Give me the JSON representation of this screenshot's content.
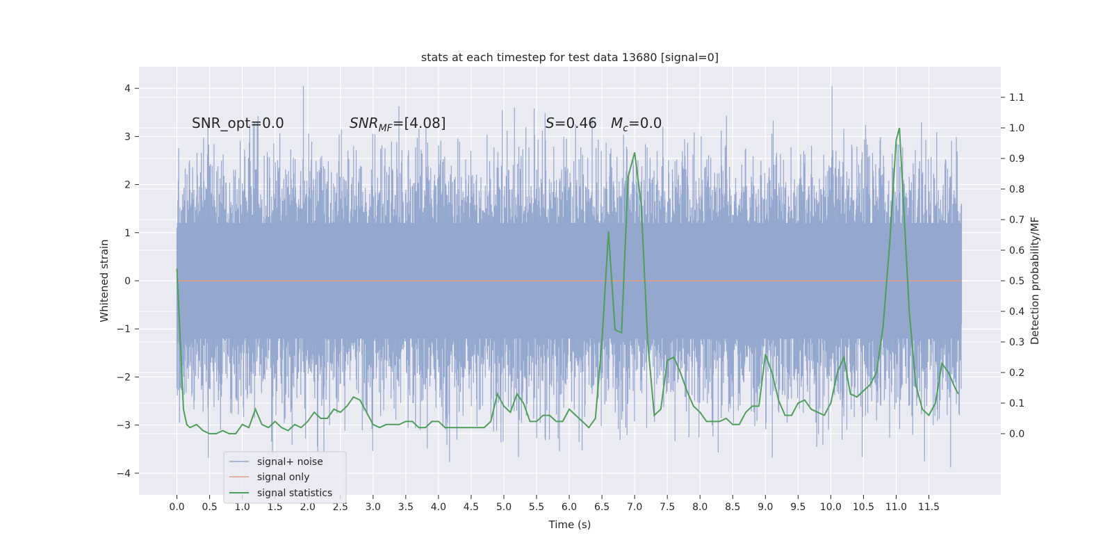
{
  "chart_data": {
    "type": "line",
    "title": "stats at each timestep for test data 13680 [signal=0]",
    "xlabel": "Time (s)",
    "ylabel_left": "Whitened strain",
    "ylabel_right": "Detection probability/MF",
    "xlim": [
      -0.58,
      12.6
    ],
    "ylim_left": [
      -4.45,
      4.45
    ],
    "ylim_right": [
      -0.2,
      1.2
    ],
    "x_ticks": [
      0.0,
      0.5,
      1.0,
      1.5,
      2.0,
      2.5,
      3.0,
      3.5,
      4.0,
      4.5,
      5.0,
      5.5,
      6.0,
      6.5,
      7.0,
      7.5,
      8.0,
      8.5,
      9.0,
      9.5,
      10.0,
      10.5,
      11.0,
      11.5
    ],
    "x_tick_labels": [
      "0.0",
      "0.5",
      "1.0",
      "1.5",
      "2.0",
      "2.5",
      "3.0",
      "3.5",
      "4.0",
      "4.5",
      "5.0",
      "5.5",
      "6.0",
      "6.5",
      "7.0",
      "7.5",
      "8.0",
      "8.5",
      "9.0",
      "9.5",
      "10.0",
      "10.5",
      "11.0",
      "11.5"
    ],
    "y_left_ticks": [
      -4,
      -3,
      -2,
      -1,
      0,
      1,
      2,
      3,
      4
    ],
    "y_left_tick_labels": [
      "−4",
      "−3",
      "−2",
      "−1",
      "0",
      "1",
      "2",
      "3",
      "4"
    ],
    "y_right_ticks": [
      0.0,
      0.1,
      0.2,
      0.3,
      0.4,
      0.5,
      0.6,
      0.7,
      0.8,
      0.9,
      1.0,
      1.1
    ],
    "y_right_tick_labels": [
      "0.0",
      "0.1",
      "0.2",
      "0.3",
      "0.4",
      "0.5",
      "0.6",
      "0.7",
      "0.8",
      "0.9",
      "1.0",
      "1.1"
    ],
    "grid": true,
    "legend_position": "lower-left",
    "annotations": {
      "snr_opt": "SNR_opt=0.0",
      "snr_mf_name": "SNR",
      "snr_mf_sub": "MF",
      "snr_mf_value": "=[4.08]",
      "s_name": "S",
      "s_value": "=0.46",
      "mc_name": "M",
      "mc_sub": "c",
      "mc_value": "=0.0"
    },
    "series": [
      {
        "name": "signal+ noise",
        "axis": "left",
        "color": "#94a7cf",
        "style": "dense noise, approx. Gaussian, spread about 0 to roughly ±2 with spikes to about ±4",
        "x_range": [
          0.0,
          12.0
        ],
        "envelope": {
          "typical": 1.9,
          "peak_max": 4.05,
          "peak_min": -4.1
        }
      },
      {
        "name": "signal only",
        "axis": "left",
        "color": "#e1a186",
        "x": [
          0.0,
          12.0
        ],
        "values": [
          0.0,
          0.0
        ]
      },
      {
        "name": "signal statistics",
        "axis": "right",
        "color": "#4f9e5a",
        "x": [
          0.0,
          0.1,
          0.15,
          0.2,
          0.3,
          0.4,
          0.5,
          0.6,
          0.7,
          0.8,
          0.9,
          1.0,
          1.1,
          1.2,
          1.3,
          1.4,
          1.5,
          1.6,
          1.7,
          1.8,
          1.9,
          2.0,
          2.1,
          2.2,
          2.3,
          2.4,
          2.5,
          2.6,
          2.7,
          2.8,
          2.9,
          3.0,
          3.1,
          3.2,
          3.3,
          3.4,
          3.5,
          3.6,
          3.7,
          3.8,
          3.9,
          4.0,
          4.1,
          4.2,
          4.3,
          4.4,
          4.5,
          4.6,
          4.7,
          4.8,
          4.9,
          5.0,
          5.1,
          5.2,
          5.3,
          5.4,
          5.5,
          5.6,
          5.7,
          5.8,
          5.9,
          6.0,
          6.1,
          6.2,
          6.3,
          6.4,
          6.5,
          6.6,
          6.7,
          6.8,
          6.9,
          7.0,
          7.1,
          7.2,
          7.3,
          7.4,
          7.5,
          7.6,
          7.7,
          7.8,
          7.9,
          8.0,
          8.1,
          8.2,
          8.3,
          8.4,
          8.5,
          8.6,
          8.7,
          8.8,
          8.9,
          9.0,
          9.1,
          9.2,
          9.3,
          9.4,
          9.5,
          9.6,
          9.7,
          9.8,
          9.9,
          10.0,
          10.1,
          10.2,
          10.3,
          10.4,
          10.5,
          10.6,
          10.7,
          10.8,
          10.9,
          11.0,
          11.05,
          11.1,
          11.2,
          11.3,
          11.4,
          11.5,
          11.6,
          11.7,
          11.8,
          11.9,
          11.95
        ],
        "values": [
          0.54,
          0.08,
          0.03,
          0.02,
          0.03,
          0.01,
          0.0,
          0.0,
          0.01,
          0.0,
          0.0,
          0.03,
          0.02,
          0.08,
          0.03,
          0.02,
          0.04,
          0.02,
          0.01,
          0.03,
          0.02,
          0.04,
          0.07,
          0.05,
          0.05,
          0.08,
          0.07,
          0.09,
          0.12,
          0.11,
          0.07,
          0.03,
          0.02,
          0.03,
          0.03,
          0.03,
          0.04,
          0.04,
          0.02,
          0.02,
          0.04,
          0.04,
          0.02,
          0.02,
          0.02,
          0.02,
          0.02,
          0.02,
          0.02,
          0.04,
          0.13,
          0.09,
          0.07,
          0.13,
          0.1,
          0.04,
          0.04,
          0.06,
          0.06,
          0.04,
          0.04,
          0.08,
          0.06,
          0.04,
          0.02,
          0.05,
          0.3,
          0.66,
          0.34,
          0.33,
          0.84,
          0.92,
          0.75,
          0.3,
          0.06,
          0.08,
          0.24,
          0.25,
          0.2,
          0.14,
          0.09,
          0.07,
          0.04,
          0.04,
          0.04,
          0.05,
          0.03,
          0.03,
          0.07,
          0.09,
          0.09,
          0.26,
          0.2,
          0.11,
          0.06,
          0.06,
          0.1,
          0.11,
          0.08,
          0.07,
          0.06,
          0.1,
          0.2,
          0.25,
          0.13,
          0.12,
          0.14,
          0.16,
          0.2,
          0.35,
          0.62,
          0.96,
          1.0,
          0.8,
          0.4,
          0.16,
          0.08,
          0.06,
          0.1,
          0.23,
          0.2,
          0.15,
          0.13
        ]
      }
    ]
  }
}
